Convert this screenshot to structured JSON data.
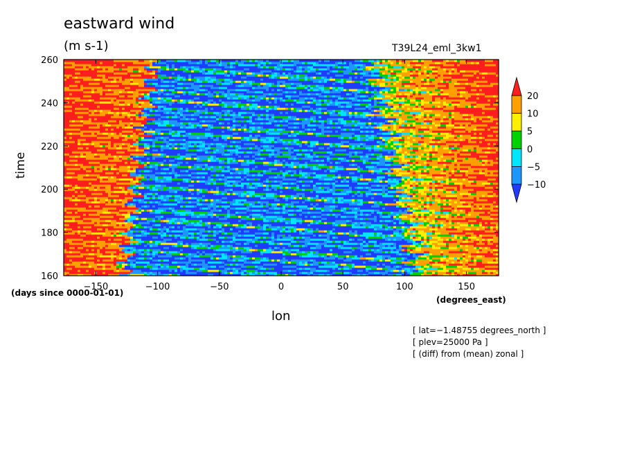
{
  "chart_data": {
    "type": "heatmap",
    "title": "eastward wind",
    "units": "(m s-1)",
    "run_name": "T39L24_eml_3kw1",
    "xlabel": "lon",
    "ylabel": "time",
    "x_units": "(degrees_east)",
    "y_units": "(days since 0000-01-01)",
    "xlim": [
      -176,
      176
    ],
    "ylim": [
      160,
      260
    ],
    "x_ticks": [
      {
        "value": -150,
        "label": "−150"
      },
      {
        "value": -100,
        "label": "−100"
      },
      {
        "value": -50,
        "label": "−50"
      },
      {
        "value": 0,
        "label": "0"
      },
      {
        "value": 50,
        "label": "50"
      },
      {
        "value": 100,
        "label": "100"
      },
      {
        "value": 150,
        "label": "150"
      }
    ],
    "y_ticks": [
      {
        "value": 160,
        "label": "160"
      },
      {
        "value": 180,
        "label": "180"
      },
      {
        "value": 200,
        "label": "200"
      },
      {
        "value": 220,
        "label": "220"
      },
      {
        "value": 240,
        "label": "240"
      },
      {
        "value": 260,
        "label": "260"
      }
    ],
    "colorbar": {
      "levels": [
        -10,
        -5,
        0,
        5,
        10,
        20
      ],
      "labels": [
        "20",
        "10",
        "5",
        "0",
        "−5",
        "−10"
      ],
      "colors": [
        "#1e3cff",
        "#1e96ff",
        "#00e6ff",
        "#00d200",
        "#fff000",
        "#ffa000",
        "#ff1e1e"
      ]
    },
    "notes": [
      "[ lat=−1.48755 degrees_north ]",
      "[ plev=25000 Pa ]",
      "[ (diff) from (mean) zonal ]"
    ]
  }
}
